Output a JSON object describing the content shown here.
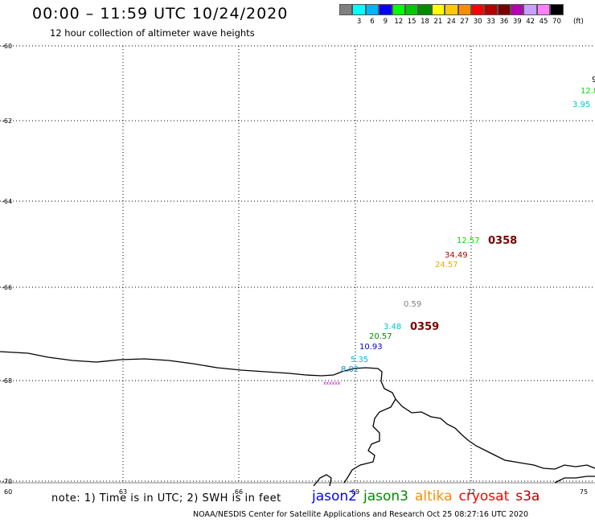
{
  "header": {
    "title": "00:00 – 11:59 UTC 10/24/2020",
    "subtitle": "12 hour collection of altimeter wave heights"
  },
  "legend": {
    "colors": [
      "#808080",
      "#00ffff",
      "#00b4ff",
      "#0000ff",
      "#00ff00",
      "#00c800",
      "#008c00",
      "#ffff00",
      "#ffc800",
      "#ff8c00",
      "#ff0000",
      "#b40000",
      "#780000",
      "#b400b4",
      "#c8a0ff",
      "#ff80ff",
      "#000000"
    ],
    "labels": [
      "",
      "3",
      "6",
      "9",
      "12",
      "15",
      "18",
      "21",
      "24",
      "27",
      "30",
      "33",
      "36",
      "39",
      "42",
      "45",
      "70"
    ],
    "unit": "(ft)"
  },
  "axes": {
    "lat_labels": [
      "-60",
      "-62",
      "-64",
      "-66",
      "-68",
      "-70"
    ],
    "lon_labels": [
      "60",
      "63",
      "66",
      "69",
      "72",
      "75"
    ]
  },
  "observations": [
    {
      "text": "9",
      "color": "#000000"
    },
    {
      "text": "12.8",
      "color": "#00e000"
    },
    {
      "text": "3.95",
      "color": "#00c8c8"
    },
    {
      "text": "12.57",
      "color": "#00d800"
    },
    {
      "text": "0358",
      "color": "#780000"
    },
    {
      "text": "34.49",
      "color": "#b40000"
    },
    {
      "text": "24.57",
      "color": "#e0b000"
    },
    {
      "text": "0.59",
      "color": "#808080"
    },
    {
      "text": "3.48",
      "color": "#00c8c8"
    },
    {
      "text": "0359",
      "color": "#780000"
    },
    {
      "text": "20.57",
      "color": "#008c00"
    },
    {
      "text": "10.93",
      "color": "#0000c8"
    },
    {
      "text": "5.35",
      "color": "#00b4ff"
    },
    {
      "text": "8.02",
      "color": "#0090c0"
    }
  ],
  "footer": {
    "note": "note: 1) Time is in UTC; 2) SWH is in feet",
    "satellites": [
      {
        "name": "jason2",
        "color": "#0000ff"
      },
      {
        "name": "jason3",
        "color": "#008c00"
      },
      {
        "name": "altika",
        "color": "#ff8c00"
      },
      {
        "name": "cryosat",
        "color": "#ff0000"
      },
      {
        "name": "s3a",
        "color": "#b40000"
      }
    ],
    "credit": "NOAA/NESDIS Center for Satellite Applications and Research    Oct 25 08:27:16 UTC 2020"
  }
}
